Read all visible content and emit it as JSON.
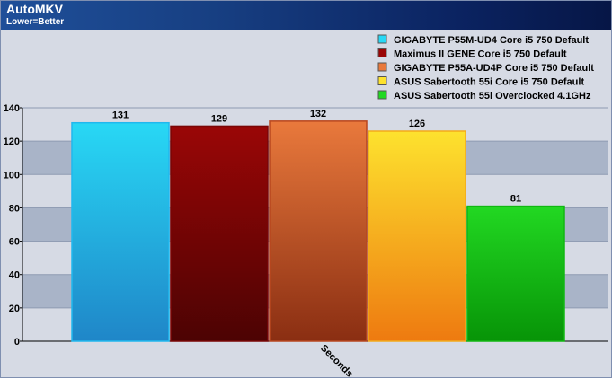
{
  "header": {
    "title": "AutoMKV",
    "subtitle": "Lower=Better"
  },
  "chart_data": {
    "type": "bar",
    "title": "AutoMKV",
    "subtitle": "Lower=Better",
    "categories": [
      "Seconds"
    ],
    "xlabel": "",
    "ylabel": "",
    "ylim": [
      0,
      140
    ],
    "yticks": [
      0,
      20,
      40,
      60,
      80,
      100,
      120,
      140
    ],
    "grid": true,
    "legend_position": "top-right",
    "series": [
      {
        "name": "GIGABYTE P55M-UD4 Core i5 750 Default",
        "values": [
          131
        ],
        "color": "#28d8f5",
        "color_dark": "#1f86c8",
        "edge": "#20b8ee"
      },
      {
        "name": "Maximus II GENE Core i5 750 Default",
        "values": [
          129
        ],
        "color": "#9a0606",
        "color_dark": "#4c0303",
        "edge": "#7a0505"
      },
      {
        "name": "GIGABYTE P55A-UD4P Core i5 750 Default",
        "values": [
          132
        ],
        "color": "#e9793c",
        "color_dark": "#8a2e12",
        "edge": "#b8461e"
      },
      {
        "name": "ASUS Sabertooth 55i Core i5 750 Default",
        "values": [
          126
        ],
        "color": "#fde22e",
        "color_dark": "#ee7a10",
        "edge": "#f3a91a"
      },
      {
        "name": "ASUS Sabertooth 55i Overclocked 4.1GHz",
        "values": [
          81
        ],
        "color": "#22d822",
        "color_dark": "#079407",
        "edge": "#10b810"
      }
    ]
  }
}
